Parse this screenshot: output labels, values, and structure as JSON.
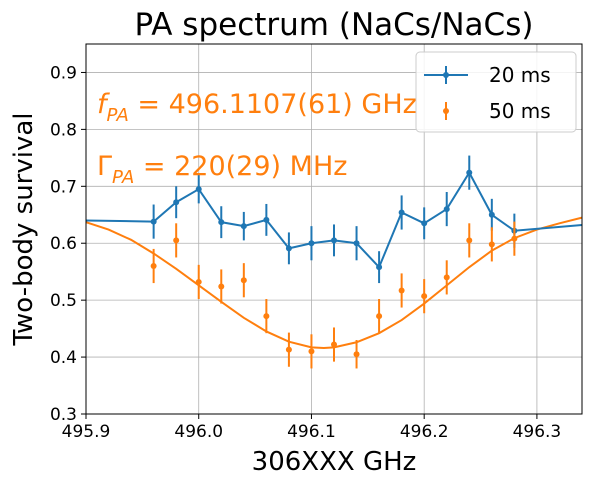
{
  "chart_data": {
    "type": "line",
    "title": "PA spectrum (NaCs/NaCs)",
    "xlabel": "306XXX GHz",
    "ylabel": "Two-body survival",
    "xlim": [
      495.9,
      496.34
    ],
    "ylim": [
      0.3,
      0.95
    ],
    "x_ticks": [
      495.9,
      496.0,
      496.1,
      496.2,
      496.3
    ],
    "x_tick_labels": [
      "495.9",
      "496.0",
      "496.1",
      "496.2",
      "496.3"
    ],
    "y_ticks": [
      0.3,
      0.4,
      0.5,
      0.6,
      0.7,
      0.8,
      0.9
    ],
    "y_tick_labels": [
      "0.3",
      "0.4",
      "0.5",
      "0.6",
      "0.7",
      "0.8",
      "0.9"
    ],
    "grid": true,
    "legend_position": "top-right",
    "annotations": {
      "f_symbol": "f",
      "f_sub": "PA",
      "f_value": " = 496.1107(61) GHz",
      "gamma_symbol": "Γ",
      "gamma_sub": "PA",
      "gamma_value": " = 220(29) MHz"
    },
    "series": [
      {
        "name": "20 ms",
        "color": "#1f77b4",
        "style": "line-with-errorbars",
        "x": [
          495.9,
          495.96,
          495.98,
          496.0,
          496.02,
          496.04,
          496.06,
          496.08,
          496.1,
          496.12,
          496.14,
          496.16,
          496.18,
          496.2,
          496.22,
          496.24,
          496.26,
          496.28,
          496.34
        ],
        "y": [
          0.64,
          0.638,
          0.672,
          0.695,
          0.637,
          0.63,
          0.641,
          0.591,
          0.6,
          0.605,
          0.6,
          0.558,
          0.654,
          0.635,
          0.66,
          0.724,
          0.65,
          0.622,
          0.632
        ],
        "yerr": [
          0,
          0.03,
          0.028,
          0.025,
          0.028,
          0.025,
          0.028,
          0.028,
          0.03,
          0.028,
          0.03,
          0.028,
          0.03,
          0.028,
          0.03,
          0.03,
          0.028,
          0.03,
          0
        ]
      },
      {
        "name": "50 ms",
        "color": "#ff7f0e",
        "style": "points-with-errorbars",
        "x": [
          495.96,
          495.98,
          496.0,
          496.02,
          496.04,
          496.06,
          496.08,
          496.1,
          496.12,
          496.14,
          496.16,
          496.18,
          496.2,
          496.22,
          496.24,
          496.26,
          496.28
        ],
        "y": [
          0.56,
          0.605,
          0.532,
          0.524,
          0.535,
          0.472,
          0.413,
          0.41,
          0.422,
          0.405,
          0.472,
          0.517,
          0.507,
          0.54,
          0.605,
          0.598,
          0.608
        ],
        "yerr": [
          0.03,
          0.03,
          0.03,
          0.03,
          0.03,
          0.03,
          0.03,
          0.03,
          0.03,
          0.025,
          0.03,
          0.03,
          0.03,
          0.03,
          0.03,
          0.03,
          0.03
        ]
      },
      {
        "name": "",
        "color": "#ff7f0e",
        "style": "fit-curve",
        "x": [
          495.9,
          495.92,
          495.94,
          495.96,
          495.98,
          496.0,
          496.02,
          496.04,
          496.06,
          496.08,
          496.1,
          496.111,
          496.12,
          496.14,
          496.16,
          496.18,
          496.2,
          496.22,
          496.24,
          496.26,
          496.28,
          496.3,
          496.32,
          496.34
        ],
        "y": [
          0.637,
          0.624,
          0.606,
          0.582,
          0.555,
          0.526,
          0.497,
          0.469,
          0.445,
          0.427,
          0.417,
          0.416,
          0.417,
          0.426,
          0.442,
          0.465,
          0.494,
          0.526,
          0.558,
          0.587,
          0.609,
          0.624,
          0.635,
          0.645
        ]
      }
    ]
  }
}
